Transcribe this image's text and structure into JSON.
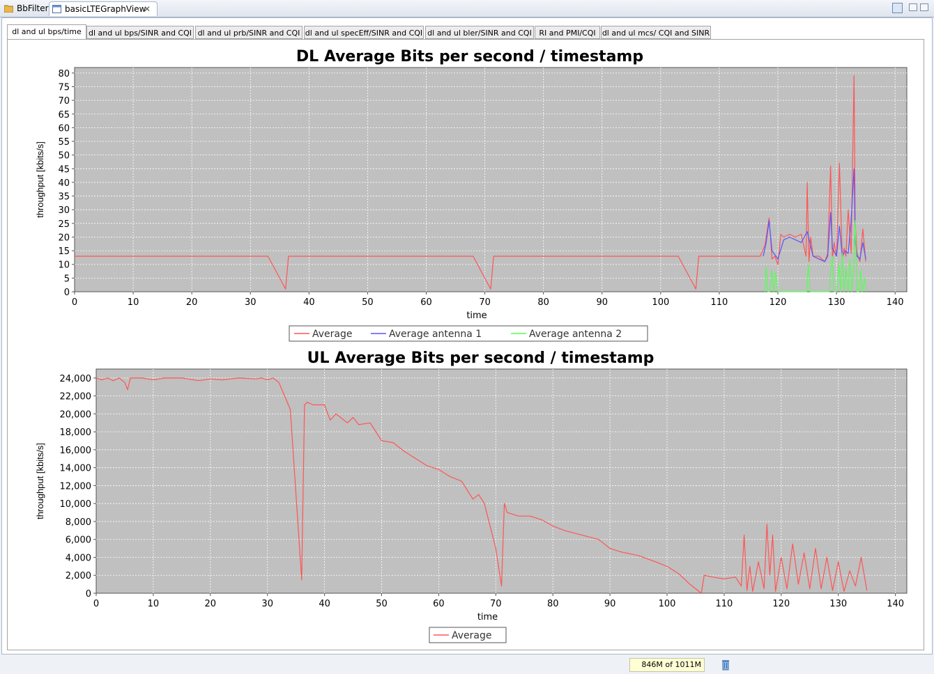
{
  "editor_tabs": [
    {
      "label": "BbFilter"
    },
    {
      "label": "basicLTEGraphView"
    }
  ],
  "close_symbol": "✕",
  "subtabs": [
    {
      "label": "dl and ul bps/time",
      "active": true
    },
    {
      "label": "dl and ul bps/SINR and CQI"
    },
    {
      "label": "dl and ul prb/SINR and CQI"
    },
    {
      "label": "dl and ul specEff/SINR and CQI"
    },
    {
      "label": "dl and ul bler/SINR and CQI"
    },
    {
      "label": "RI and PMI/CQI"
    },
    {
      "label": "dl and ul mcs/ CQI and SINR"
    }
  ],
  "status": {
    "memory": "846M of 1011M"
  },
  "colors": {
    "plot_bg": "#c0c0c0",
    "average": "#ff5555",
    "antenna1": "#5555ff",
    "antenna2": "#55ff55"
  },
  "chart_data": [
    {
      "type": "line",
      "title": "DL Average Bits per second / timestamp",
      "xlabel": "time",
      "ylabel": "throughput [kbits/s]",
      "xlim": [
        0,
        142
      ],
      "ylim": [
        0,
        82
      ],
      "xticks": [
        "0",
        "10",
        "20",
        "30",
        "40",
        "50",
        "60",
        "70",
        "80",
        "90",
        "100",
        "110",
        "120",
        "130",
        "140"
      ],
      "yticks": [
        "0",
        "5",
        "10",
        "15",
        "20",
        "25",
        "30",
        "35",
        "40",
        "45",
        "50",
        "55",
        "60",
        "65",
        "70",
        "75",
        "80"
      ],
      "grid": true,
      "legend_position": "bottom",
      "series": [
        {
          "name": "Average",
          "color": "#ff5555",
          "x": [
            0,
            5,
            10,
            15,
            20,
            25,
            30,
            33,
            36,
            36.5,
            40,
            45,
            50,
            55,
            60,
            65,
            68,
            71,
            71.5,
            75,
            80,
            85,
            90,
            95,
            100,
            103,
            106,
            106.5,
            110,
            115,
            117,
            117.8,
            118.5,
            119,
            119.5,
            120,
            120.5,
            121,
            122,
            123,
            124,
            124.8,
            125,
            125.3,
            125.6,
            126,
            127,
            128,
            128.5,
            129,
            129.3,
            129.6,
            130,
            130.5,
            131,
            131.3,
            131.6,
            132,
            132.5,
            133,
            133.2,
            133.5,
            134,
            134.5,
            135
          ],
          "y": [
            13,
            13,
            13,
            13,
            13,
            13,
            13,
            13,
            1,
            13,
            13,
            13,
            13,
            13,
            13,
            13,
            13,
            1,
            13,
            13,
            13,
            13,
            13,
            13,
            13,
            13,
            1,
            13,
            13,
            13,
            13,
            17,
            27,
            12,
            13,
            10,
            21,
            20,
            21,
            20,
            21,
            13,
            40,
            11,
            20,
            13,
            13,
            11,
            14,
            46,
            12,
            18,
            13,
            47,
            12,
            16,
            13,
            30,
            14,
            79,
            25,
            14,
            11,
            23,
            11
          ]
        },
        {
          "name": "Average antenna 1",
          "color": "#5555ff",
          "x": [
            117.5,
            118,
            118.5,
            119,
            120,
            121,
            122,
            123,
            124,
            125,
            126,
            127,
            128,
            128.5,
            129,
            129.3,
            130,
            130.5,
            131,
            131.5,
            132,
            132.5,
            133,
            133.2,
            133.5,
            134,
            134.5,
            135
          ],
          "y": [
            13,
            18,
            26,
            15,
            12,
            19,
            20,
            19,
            18,
            22,
            13,
            12,
            11,
            13,
            29,
            16,
            13,
            24,
            13,
            15,
            14,
            26,
            45,
            18,
            13,
            12,
            18,
            12
          ]
        },
        {
          "name": "Average antenna 2",
          "color": "#55ff55",
          "x": [
            117.8,
            118,
            118.3,
            118.6,
            119,
            119.3,
            119.6,
            120,
            124.9,
            125.2,
            125.5,
            128.8,
            129,
            129.3,
            129.6,
            130,
            130.4,
            130.7,
            131,
            131.3,
            131.6,
            132,
            132.3,
            132.6,
            132.9,
            133.2,
            133.5,
            133.8,
            134.1,
            134.4,
            134.8,
            135.1
          ],
          "y": [
            0,
            9,
            0,
            0,
            8,
            0,
            7,
            0,
            0,
            10,
            0,
            0,
            8,
            13,
            0,
            0,
            10,
            0,
            14,
            0,
            9,
            0,
            12,
            0,
            7,
            26,
            0,
            0,
            8,
            0,
            5,
            0
          ]
        }
      ]
    },
    {
      "type": "line",
      "title": "UL Average Bits per second / timestamp",
      "xlabel": "time",
      "ylabel": "throughput [kbits/s]",
      "xlim": [
        0,
        142
      ],
      "ylim": [
        0,
        25000
      ],
      "xticks": [
        "0",
        "10",
        "20",
        "30",
        "40",
        "50",
        "60",
        "70",
        "80",
        "90",
        "100",
        "110",
        "120",
        "130",
        "140"
      ],
      "yticks": [
        "0",
        "2,000",
        "4,000",
        "6,000",
        "8,000",
        "10,000",
        "12,000",
        "14,000",
        "16,000",
        "18,000",
        "20,000",
        "22,000",
        "24,000"
      ],
      "grid": true,
      "legend_position": "bottom",
      "series": [
        {
          "name": "Average",
          "color": "#ff5555",
          "x": [
            0,
            1,
            2,
            3,
            4,
            5,
            5.5,
            6,
            8,
            10,
            12,
            15,
            18,
            20,
            22,
            25,
            28,
            29,
            30,
            31,
            32,
            33,
            34,
            36,
            36.5,
            37,
            38,
            40,
            41,
            42,
            44,
            45,
            46,
            48,
            50,
            52,
            54,
            56,
            58,
            60,
            62,
            64,
            65,
            66,
            67,
            68,
            70,
            71,
            71.5,
            72,
            74,
            76,
            78,
            80,
            82,
            85,
            88,
            90,
            92,
            95,
            98,
            100,
            102,
            104,
            106,
            106.5,
            108,
            110,
            112,
            113,
            113.5,
            114,
            114.5,
            115,
            116,
            117,
            117.5,
            118,
            118.5,
            119,
            120,
            121,
            122,
            123,
            124,
            125,
            126,
            127,
            128,
            129,
            130,
            131,
            132,
            133,
            134,
            135
          ],
          "y": [
            24000,
            23800,
            24000,
            23700,
            24000,
            23500,
            22700,
            24000,
            24000,
            23800,
            24000,
            24000,
            23700,
            23900,
            23800,
            24000,
            23900,
            24000,
            23800,
            24000,
            23500,
            22000,
            20500,
            1500,
            21000,
            21300,
            21000,
            21000,
            19300,
            20000,
            19000,
            19600,
            18800,
            19000,
            17000,
            16800,
            15800,
            15000,
            14200,
            13800,
            13000,
            12500,
            11500,
            10500,
            11000,
            10000,
            5000,
            800,
            10000,
            9000,
            8600,
            8600,
            8200,
            7500,
            7000,
            6500,
            6000,
            5000,
            4600,
            4200,
            3500,
            3000,
            2200,
            1000,
            0,
            2000,
            1800,
            1600,
            1800,
            800,
            6500,
            300,
            3000,
            200,
            3500,
            500,
            7700,
            2000,
            6500,
            200,
            4000,
            500,
            5500,
            1000,
            4500,
            500,
            5000,
            500,
            4000,
            300,
            3500,
            200,
            2500,
            800,
            4000,
            300
          ]
        }
      ]
    }
  ]
}
